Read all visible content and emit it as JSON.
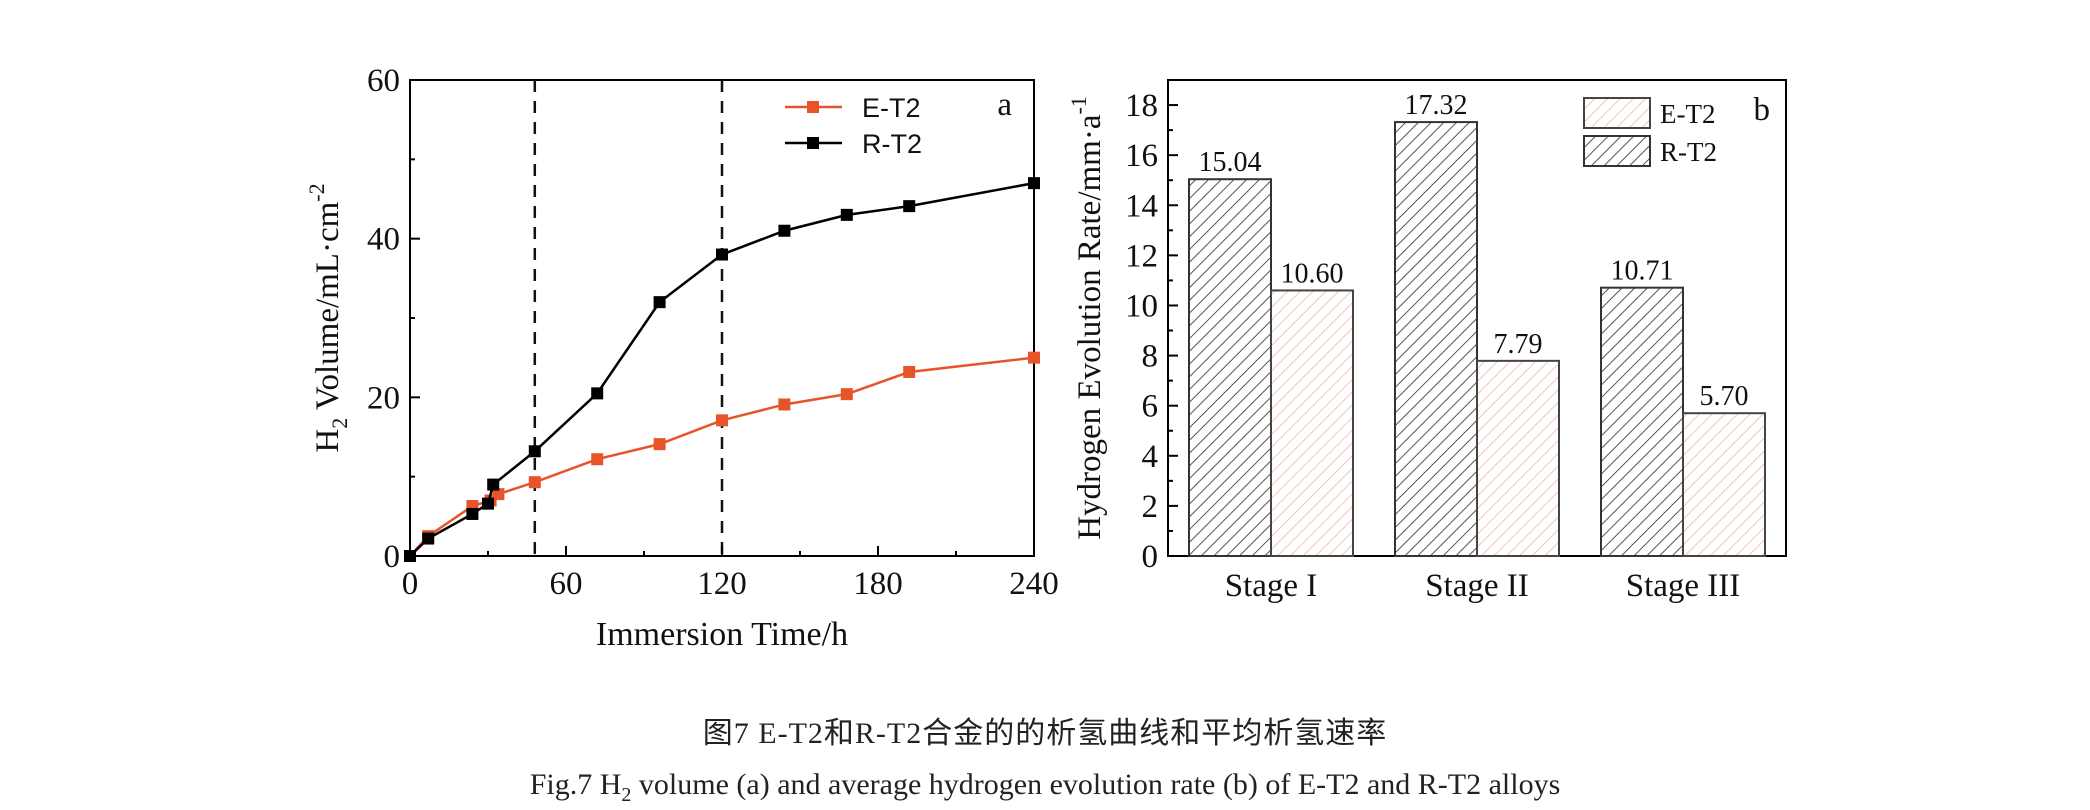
{
  "figure": {
    "caption_cn": "图7  E-T2和R-T2合金的的析氢曲线和平均析氢速率",
    "caption_en_prefix": "Fig.7  H",
    "caption_en_sub": "2",
    "caption_en_rest": " volume (a) and average hydrogen evolution rate (b) of E-T2 and R-T2 alloys"
  },
  "colors": {
    "e_t2": "#e8542a",
    "r_t2": "#000000",
    "e_t2_hatch": "#f0b79d",
    "r_t2_hatch": "#555555"
  },
  "chart_data": [
    {
      "type": "line",
      "panel_label": "a",
      "xlabel": "Immersion Time/h",
      "ylabel_main": "H",
      "ylabel_sub": "2",
      "ylabel_rest": " Volume/mL·cm",
      "ylabel_sup": "-2",
      "xlim": [
        0,
        240
      ],
      "ylim": [
        0,
        60
      ],
      "xticks": [
        0,
        60,
        120,
        180,
        240
      ],
      "yticks": [
        0,
        20,
        40,
        60
      ],
      "vlines": [
        48,
        120
      ],
      "legend_position": "top-right",
      "series": [
        {
          "name": "E-T2",
          "color": "#e8542a",
          "x": [
            0,
            7,
            24,
            31,
            34,
            48,
            72,
            96,
            120,
            144,
            168,
            192,
            240
          ],
          "y": [
            0,
            2.5,
            6.3,
            7.0,
            7.8,
            9.3,
            12.2,
            14.1,
            17.1,
            19.1,
            20.4,
            23.2,
            25.0
          ]
        },
        {
          "name": "R-T2",
          "color": "#000000",
          "x": [
            0,
            7,
            24,
            30,
            32,
            48,
            72,
            96,
            120,
            144,
            168,
            192,
            240
          ],
          "y": [
            0,
            2.2,
            5.3,
            6.6,
            9.0,
            13.2,
            20.5,
            32.0,
            38.0,
            41.0,
            43.0,
            44.1,
            47.0
          ]
        }
      ]
    },
    {
      "type": "bar",
      "panel_label": "b",
      "ylabel_main": "Hydrogen Evolution Rate/mm·a",
      "ylabel_sup": "-1",
      "ylim": [
        0,
        19
      ],
      "yticks": [
        0,
        2,
        4,
        6,
        8,
        10,
        12,
        14,
        16,
        18
      ],
      "categories": [
        "Stage I",
        "Stage II",
        "Stage III"
      ],
      "legend_position": "top-right",
      "series": [
        {
          "name": "R-T2",
          "values": [
            15.04,
            17.32,
            10.71
          ],
          "labels": [
            "15.04",
            "17.32",
            "10.71"
          ]
        },
        {
          "name": "E-T2",
          "values": [
            10.6,
            7.79,
            5.7
          ],
          "labels": [
            "10.60",
            "7.79",
            "5.70"
          ]
        }
      ]
    }
  ]
}
